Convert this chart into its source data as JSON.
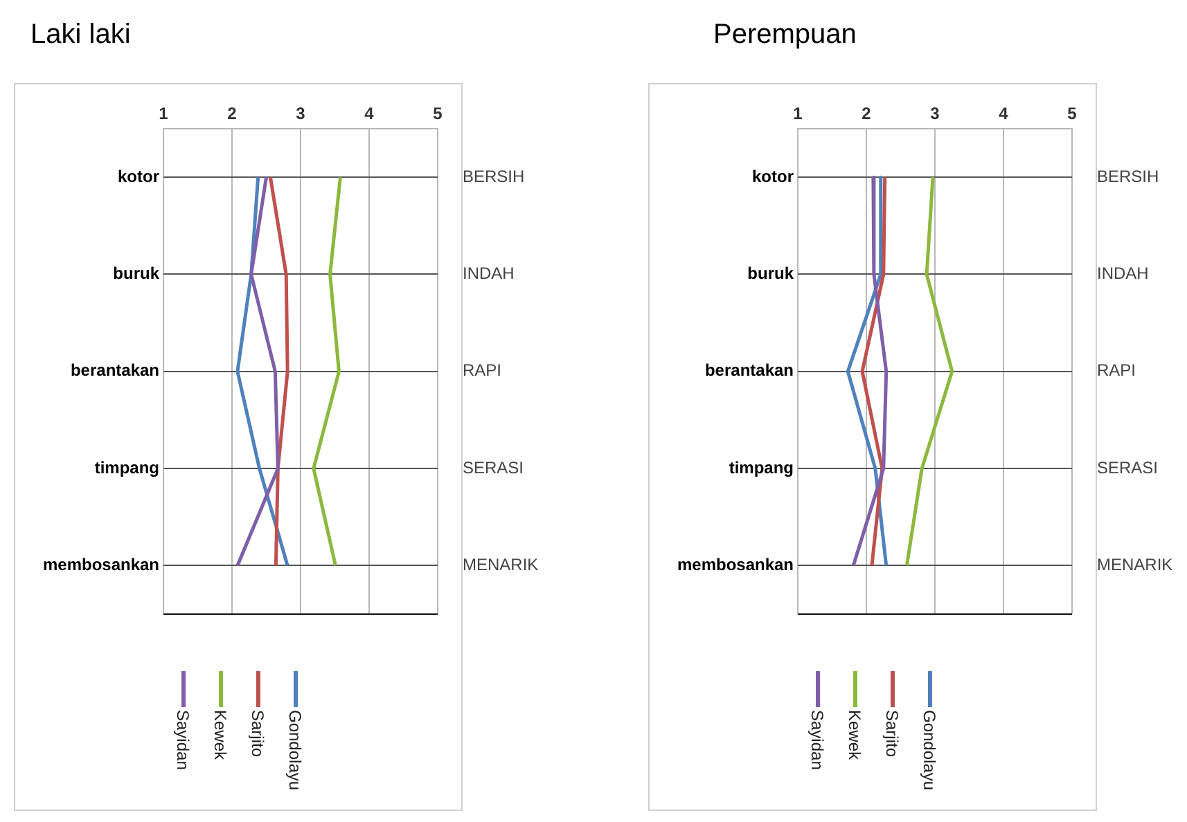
{
  "chart_data": [
    {
      "type": "line",
      "title": "Laki laki",
      "orientation": "horizontal",
      "categories": [
        "kotor",
        "buruk",
        "berantakan",
        "timpang",
        "membosankan"
      ],
      "y2_categories": [
        "BERSIH",
        "INDAH",
        "RAPI",
        "SERASI",
        "MENARIK"
      ],
      "xlim": [
        1,
        5
      ],
      "xticks": [
        1,
        2,
        3,
        4,
        5
      ],
      "grid": true,
      "legend": "bottom",
      "marker": "none",
      "series": [
        {
          "name": "Sayidan",
          "color": "#7f5fa8",
          "values": [
            2.5,
            2.28,
            2.63,
            2.67,
            2.08
          ]
        },
        {
          "name": "Kewek",
          "color": "#8db83e",
          "values": [
            3.58,
            3.43,
            3.56,
            3.19,
            3.51
          ]
        },
        {
          "name": "Sarjito",
          "color": "#c0504d",
          "values": [
            2.56,
            2.79,
            2.81,
            2.67,
            2.64
          ]
        },
        {
          "name": "Gondolayu",
          "color": "#4f81bd",
          "values": [
            2.38,
            2.28,
            2.08,
            2.4,
            2.81
          ]
        }
      ]
    },
    {
      "type": "line",
      "title": "Perempuan",
      "orientation": "horizontal",
      "categories": [
        "kotor",
        "buruk",
        "berantakan",
        "timpang",
        "membosankan"
      ],
      "y2_categories": [
        "BERSIH",
        "INDAH",
        "RAPI",
        "SERASI",
        "MENARIK"
      ],
      "xlim": [
        1,
        5
      ],
      "xticks": [
        1,
        2,
        3,
        4,
        5
      ],
      "grid": true,
      "legend": "bottom",
      "marker": "none",
      "series": [
        {
          "name": "Sayidan",
          "color": "#7f5fa8",
          "values": [
            2.1,
            2.11,
            2.29,
            2.25,
            1.81
          ]
        },
        {
          "name": "Kewek",
          "color": "#8db83e",
          "values": [
            2.97,
            2.88,
            3.25,
            2.81,
            2.59
          ]
        },
        {
          "name": "Sarjito",
          "color": "#c0504d",
          "values": [
            2.27,
            2.25,
            1.94,
            2.23,
            2.08
          ]
        },
        {
          "name": "Gondolayu",
          "color": "#4f81bd",
          "values": [
            2.21,
            2.21,
            1.73,
            2.13,
            2.29
          ]
        }
      ]
    }
  ]
}
